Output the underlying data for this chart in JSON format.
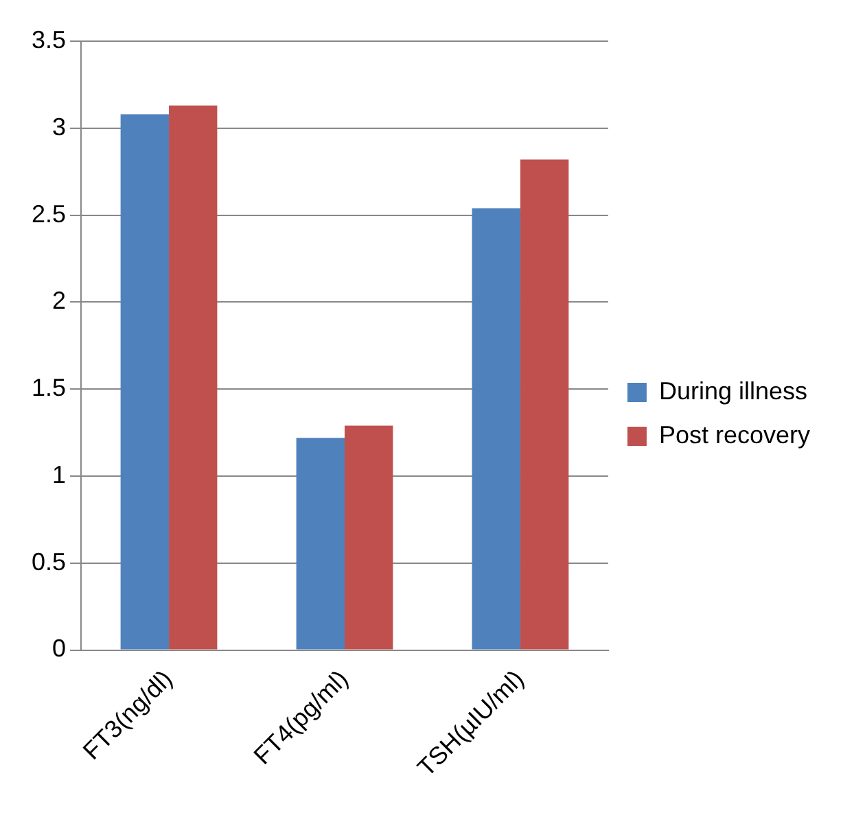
{
  "chart_data": {
    "type": "bar",
    "categories": [
      "FT3(ng/dl)",
      "FT4(pg/ml)",
      "TSH(µIU/ml)"
    ],
    "series": [
      {
        "name": "During illness",
        "color": "#4f81bd",
        "values": [
          3.08,
          1.22,
          2.54
        ]
      },
      {
        "name": "Post recovery",
        "color": "#c0504d",
        "values": [
          3.13,
          1.29,
          2.82
        ]
      }
    ],
    "ylim": [
      0,
      3.5
    ],
    "yticks": [
      0,
      0.5,
      1,
      1.5,
      2,
      2.5,
      3,
      3.5
    ],
    "grid": "y",
    "legend": "right"
  }
}
